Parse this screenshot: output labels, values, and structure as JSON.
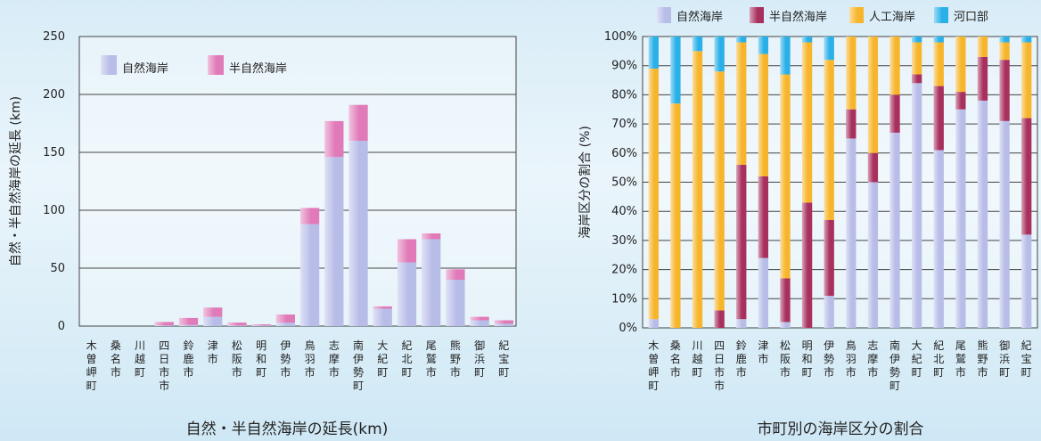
{
  "chart_data": [
    {
      "type": "bar",
      "stacked": true,
      "title": "自然・半自然海岸の延長(km)",
      "ylabel": "自然・半自然海岸の延長 (km)",
      "ylim": [
        0,
        250
      ],
      "yticks": [
        "0",
        "50",
        "100",
        "150",
        "200",
        "250"
      ],
      "grid": true,
      "legend_position": "top-left",
      "categories": [
        "木曽岬町",
        "桑名市",
        "川越町",
        "四日市市",
        "鈴鹿市",
        "津市",
        "松阪市",
        "明和町",
        "伊勢市",
        "鳥羽市",
        "志摩市",
        "南伊勢町",
        "大紀町",
        "紀北町",
        "尾鷲市",
        "熊野市",
        "御浜町",
        "紀宝町"
      ],
      "series": [
        {
          "name": "自然海岸",
          "color": "#b8bde8",
          "values": [
            0,
            0,
            0,
            0.5,
            1,
            8,
            0.5,
            0.5,
            3,
            88,
            146,
            160,
            15,
            55,
            75,
            40,
            5,
            2
          ]
        },
        {
          "name": "半自然海岸",
          "color": "#e07ab8",
          "values": [
            0,
            0,
            0,
            3,
            6,
            8,
            2.5,
            1,
            7,
            14,
            31,
            31,
            2,
            20,
            5,
            9,
            3,
            3
          ]
        }
      ]
    },
    {
      "type": "bar",
      "stacked": true,
      "title": "市町別の海岸区分の割合",
      "ylabel": "海岸区分の割合 (%)",
      "ylim": [
        0,
        100
      ],
      "yticks": [
        "0%",
        "10%",
        "20%",
        "30%",
        "40%",
        "50%",
        "60%",
        "70%",
        "80%",
        "90%",
        "100%"
      ],
      "grid": true,
      "legend_position": "top",
      "categories": [
        "木曽岬町",
        "桑名市",
        "川越町",
        "四日市市",
        "鈴鹿市",
        "津市",
        "松阪市",
        "明和町",
        "伊勢市",
        "鳥羽市",
        "志摩市",
        "南伊勢町",
        "大紀町",
        "紀北町",
        "尾鷲市",
        "熊野市",
        "御浜町",
        "紀宝町"
      ],
      "series": [
        {
          "name": "自然海岸",
          "color": "#b8bde8",
          "values": [
            3,
            0,
            0,
            0,
            3,
            24,
            2,
            0,
            11,
            65,
            50,
            67,
            84,
            61,
            75,
            78,
            71,
            32
          ]
        },
        {
          "name": "半自然海岸",
          "color": "#a8305e",
          "values": [
            0,
            0,
            0,
            6,
            53,
            28,
            15,
            43,
            26,
            10,
            10,
            13,
            3,
            22,
            6,
            15,
            21,
            40
          ]
        },
        {
          "name": "人工海岸",
          "color": "#f7b52c",
          "values": [
            86,
            77,
            95,
            82,
            42,
            42,
            70,
            55,
            55,
            25,
            40,
            20,
            11,
            15,
            19,
            7,
            6,
            26
          ]
        },
        {
          "name": "河口部",
          "color": "#2ab0e8",
          "values": [
            11,
            23,
            5,
            12,
            2,
            6,
            13,
            2,
            8,
            0,
            0,
            0,
            2,
            2,
            0,
            0,
            2,
            2
          ]
        }
      ]
    }
  ]
}
